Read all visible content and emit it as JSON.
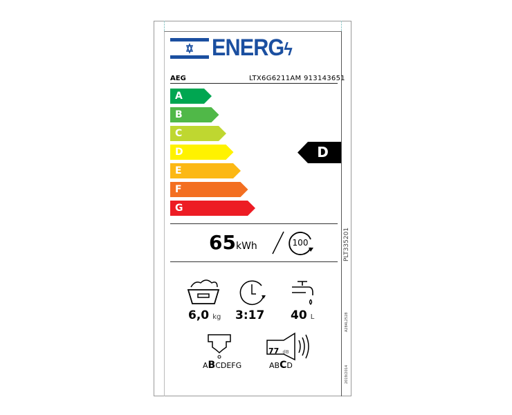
{
  "header": {
    "logo_text": "ENERG",
    "flag": "israel-flag",
    "brand": "AEG",
    "model": "LTX6G6211AM 913143651"
  },
  "scale": {
    "classes": [
      {
        "label": "A",
        "color": "#00a651"
      },
      {
        "label": "B",
        "color": "#50b848"
      },
      {
        "label": "C",
        "color": "#bfd730"
      },
      {
        "label": "D",
        "color": "#fff200"
      },
      {
        "label": "E",
        "color": "#fcb814"
      },
      {
        "label": "F",
        "color": "#f36f21"
      },
      {
        "label": "G",
        "color": "#ed1c24"
      }
    ],
    "rating": "D"
  },
  "energy": {
    "value": "65",
    "unit": "kWh",
    "cycles": "100"
  },
  "specs": {
    "capacity": "6,0",
    "capacity_unit": "kg",
    "duration": "3:17",
    "water": "40",
    "water_unit": "L"
  },
  "spin_class": {
    "prefix": "A",
    "highlight": "B",
    "suffix": "CDEFG"
  },
  "noise": {
    "value": "77",
    "unit": "dB",
    "prefix": "AB",
    "highlight": "C",
    "suffix": "D"
  },
  "side": {
    "code1": "PLT335201",
    "code2": "A284L2528",
    "regulation": "2019/2014"
  }
}
